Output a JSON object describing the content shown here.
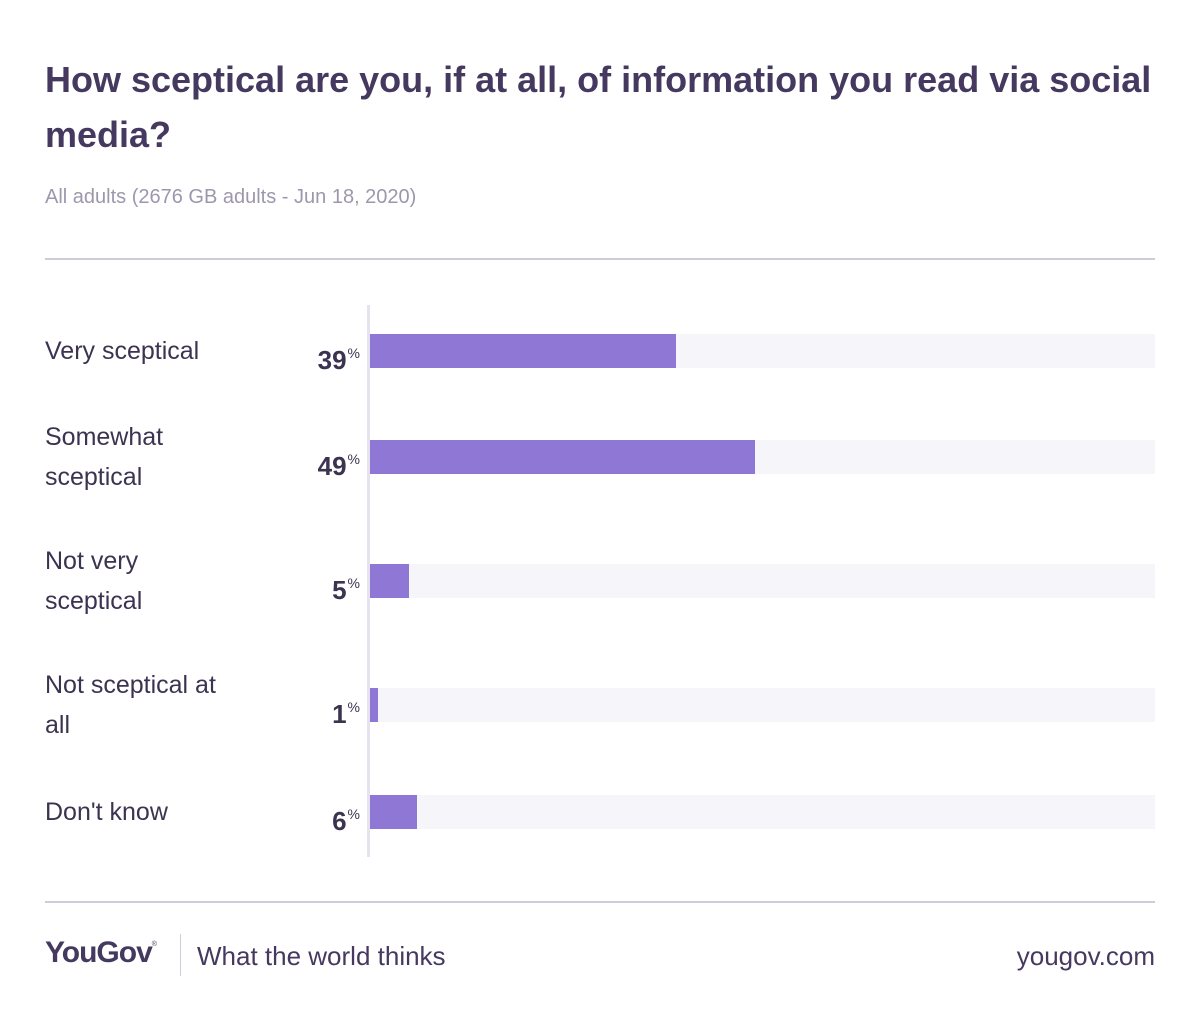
{
  "chart_data": {
    "type": "bar",
    "orientation": "horizontal",
    "title": "How sceptical are you, if at all, of information you read via social media?",
    "subtitle": "All adults (2676 GB adults - Jun 18, 2020)",
    "unit": "%",
    "xlim": [
      0,
      100
    ],
    "grid": false,
    "categories": [
      [
        "Very sceptical"
      ],
      [
        "Somewhat",
        "sceptical"
      ],
      [
        "Not very",
        "sceptical"
      ],
      [
        "Not sceptical at",
        "all"
      ],
      [
        "Don't know"
      ]
    ],
    "values": [
      39,
      49,
      5,
      1,
      6
    ],
    "colors": {
      "bar": "#8f77d6",
      "track": "#f6f5fa"
    }
  },
  "footer": {
    "brand": "YouGov",
    "brand_mark": "®",
    "tagline": "What the world thinks",
    "site": "yougov.com"
  }
}
